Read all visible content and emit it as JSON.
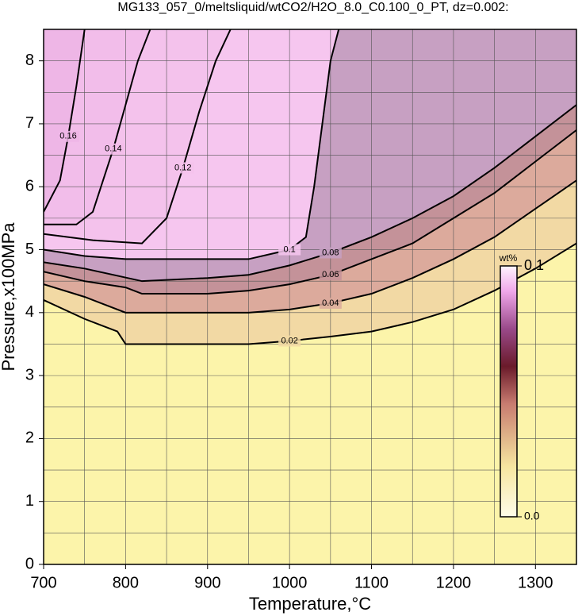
{
  "chart_data": {
    "type": "contour",
    "title": "MG133_057_0/meltsliquid/wtCO2/H2O_8.0_C0.100_0_PT, dz=0.002:",
    "xlabel": "Temperature,°C",
    "ylabel": "Pressure,x100MPa",
    "xlim": [
      700,
      1350
    ],
    "ylim": [
      0,
      8.5
    ],
    "xticks": [
      700,
      800,
      900,
      1000,
      1100,
      1200,
      1300
    ],
    "yticks": [
      0,
      1,
      2,
      3,
      4,
      5,
      6,
      7,
      8
    ],
    "grid": true,
    "background": "#fcf4aa",
    "series": [
      {
        "name": "0.02",
        "color": "#f2d9a4",
        "x": [
          700,
          750,
          770,
          790,
          800,
          850,
          950,
          1000,
          1050,
          1100,
          1150,
          1200,
          1250,
          1300,
          1350
        ],
        "y": [
          4.2,
          3.9,
          3.8,
          3.7,
          3.5,
          3.5,
          3.5,
          3.55,
          3.62,
          3.7,
          3.85,
          4.05,
          4.35,
          4.7,
          5.1
        ]
      },
      {
        "name": "0.04",
        "color": "#dcaa9c",
        "x": [
          700,
          750,
          800,
          850,
          950,
          1000,
          1050,
          1100,
          1150,
          1200,
          1250,
          1300,
          1350
        ],
        "y": [
          4.45,
          4.25,
          4.0,
          4.0,
          4.0,
          4.05,
          4.15,
          4.3,
          4.55,
          4.85,
          5.2,
          5.65,
          6.1
        ]
      },
      {
        "name": "0.06",
        "color": "#c49299",
        "x": [
          700,
          750,
          800,
          820,
          900,
          950,
          1000,
          1050,
          1100,
          1150,
          1200,
          1250,
          1300,
          1350
        ],
        "y": [
          4.65,
          4.5,
          4.4,
          4.3,
          4.3,
          4.35,
          4.45,
          4.6,
          4.85,
          5.1,
          5.5,
          5.9,
          6.4,
          6.9
        ]
      },
      {
        "name": "0.08",
        "color": "#c7a0c2",
        "x": [
          700,
          750,
          820,
          900,
          950,
          1000,
          1050,
          1100,
          1150,
          1200,
          1250,
          1300,
          1350
        ],
        "y": [
          4.8,
          4.7,
          4.5,
          4.55,
          4.6,
          4.75,
          4.95,
          5.2,
          5.5,
          5.85,
          6.3,
          6.8,
          7.3
        ]
      },
      {
        "name": "0.1",
        "color": "#f6c6ef",
        "x": [
          700,
          750,
          800,
          900,
          950,
          1000,
          1020,
          1030,
          1040,
          1050,
          1060
        ],
        "y": [
          5.0,
          4.9,
          4.85,
          4.85,
          4.85,
          5.0,
          5.2,
          6.0,
          7.0,
          8.0,
          8.5
        ]
      },
      {
        "name": "0.12",
        "color": "#f4c2ec",
        "x": [
          700,
          760,
          820,
          850,
          870,
          890,
          910,
          928
        ],
        "y": [
          5.25,
          5.15,
          5.1,
          5.5,
          6.3,
          7.2,
          8.0,
          8.5
        ]
      },
      {
        "name": "0.14",
        "color": "#f2bdea",
        "x": [
          700,
          740,
          760,
          770,
          785,
          800,
          815,
          830
        ],
        "y": [
          5.4,
          5.4,
          5.6,
          6.0,
          6.6,
          7.3,
          8.0,
          8.5
        ]
      },
      {
        "name": "0.16",
        "color": "#eeb6e6",
        "x": [
          700,
          720,
          730,
          740,
          750
        ],
        "y": [
          5.6,
          6.1,
          6.8,
          7.6,
          8.5
        ]
      }
    ],
    "colorbar": {
      "label": "wt%",
      "lim": [
        0,
        0.1
      ],
      "ticks": [
        {
          "value": 0,
          "label": "0.0"
        },
        {
          "value": 0.1,
          "label": "0.1"
        }
      ]
    }
  }
}
